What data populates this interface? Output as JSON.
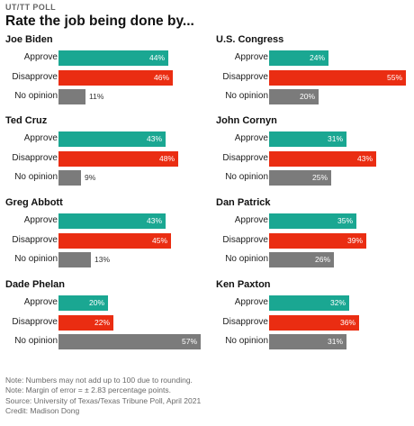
{
  "kicker": "UT/TT POLL",
  "title": "Rate the job being done by...",
  "colors": {
    "approve": "#1aa792",
    "disapprove": "#ea2d12",
    "no_opinion": "#7b7b7b"
  },
  "chart_data": [
    {
      "type": "bar",
      "orientation": "horizontal",
      "title": "Joe Biden",
      "categories": [
        "Approve",
        "Disapprove",
        "No opinion"
      ],
      "values": [
        44,
        46,
        11
      ],
      "labels": [
        "44%",
        "46%",
        "11%"
      ],
      "xlim": [
        0,
        60
      ]
    },
    {
      "type": "bar",
      "orientation": "horizontal",
      "title": "U.S. Congress",
      "categories": [
        "Approve",
        "Disapprove",
        "No opinion"
      ],
      "values": [
        24,
        55,
        20
      ],
      "labels": [
        "24%",
        "55%",
        "20%"
      ],
      "xlim": [
        0,
        60
      ]
    },
    {
      "type": "bar",
      "orientation": "horizontal",
      "title": "Ted Cruz",
      "categories": [
        "Approve",
        "Disapprove",
        "No opinion"
      ],
      "values": [
        43,
        48,
        9
      ],
      "labels": [
        "43%",
        "48%",
        "9%"
      ],
      "xlim": [
        0,
        60
      ]
    },
    {
      "type": "bar",
      "orientation": "horizontal",
      "title": "John Cornyn",
      "categories": [
        "Approve",
        "Disapprove",
        "No opinion"
      ],
      "values": [
        31,
        43,
        25
      ],
      "labels": [
        "31%",
        "43%",
        "25%"
      ],
      "xlim": [
        0,
        60
      ]
    },
    {
      "type": "bar",
      "orientation": "horizontal",
      "title": "Greg Abbott",
      "categories": [
        "Approve",
        "Disapprove",
        "No opinion"
      ],
      "values": [
        43,
        45,
        13
      ],
      "labels": [
        "43%",
        "45%",
        "13%"
      ],
      "xlim": [
        0,
        60
      ]
    },
    {
      "type": "bar",
      "orientation": "horizontal",
      "title": "Dan Patrick",
      "categories": [
        "Approve",
        "Disapprove",
        "No opinion"
      ],
      "values": [
        35,
        39,
        26
      ],
      "labels": [
        "35%",
        "39%",
        "26%"
      ],
      "xlim": [
        0,
        60
      ]
    },
    {
      "type": "bar",
      "orientation": "horizontal",
      "title": "Dade Phelan",
      "categories": [
        "Approve",
        "Disapprove",
        "No opinion"
      ],
      "values": [
        20,
        22,
        57
      ],
      "labels": [
        "20%",
        "22%",
        "57%"
      ],
      "xlim": [
        0,
        60
      ]
    },
    {
      "type": "bar",
      "orientation": "horizontal",
      "title": "Ken Paxton",
      "categories": [
        "Approve",
        "Disapprove",
        "No opinion"
      ],
      "values": [
        32,
        36,
        31
      ],
      "labels": [
        "32%",
        "36%",
        "31%"
      ],
      "xlim": [
        0,
        60
      ]
    }
  ],
  "notes": [
    "Note: Numbers may not add up to 100 due to rounding.",
    "Note: Margin of error = ± 2.83 percentage points.",
    "Source: University of Texas/Texas Tribune Poll, April 2021",
    "Credit: Madison Dong"
  ]
}
